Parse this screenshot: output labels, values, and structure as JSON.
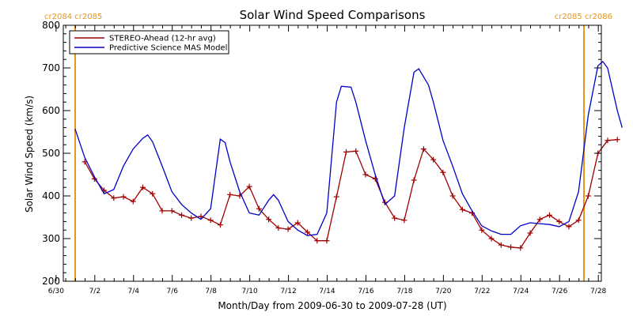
{
  "chart_data": {
    "type": "line",
    "title": "Solar Wind Speed Comparisons",
    "xlabel": "Month/Day from 2009-06-30 to 2009-07-28 (UT)",
    "ylabel": "Solar Wind Speed (km/s)",
    "ylim": [
      200,
      800
    ],
    "xlim": [
      "2009-06-30",
      "2009-07-28"
    ],
    "grid": false,
    "legend_position": "top-left",
    "x_ticks": [
      "6/30",
      "7/2",
      "7/4",
      "7/6",
      "7/8",
      "7/10",
      "7/12",
      "7/14",
      "7/16",
      "7/18",
      "7/20",
      "7/22",
      "7/24",
      "7/26",
      "7/28"
    ],
    "y_ticks": [
      "200",
      "300",
      "400",
      "500",
      "600",
      "700",
      "800"
    ],
    "carrington_markers": [
      {
        "date": "2009-06-30",
        "left_label": "cr2084",
        "right_label": "cr2085",
        "color": "#e8961e"
      },
      {
        "date": "2009-07-28",
        "left_label": "cr2085",
        "right_label": "cr2086",
        "color": "#e8961e"
      }
    ],
    "series": [
      {
        "name": "STEREO-Ahead (12-hr avg)",
        "color": "#a00000",
        "marker": "plus",
        "points": [
          [
            "2009-06-30T12:00",
            480
          ],
          [
            "2009-07-01T00:00",
            440
          ],
          [
            "2009-07-01T12:00",
            413
          ],
          [
            "2009-07-02T00:00",
            395
          ],
          [
            "2009-07-02T12:00",
            398
          ],
          [
            "2009-07-03T00:00",
            387
          ],
          [
            "2009-07-03T12:00",
            420
          ],
          [
            "2009-07-04T00:00",
            405
          ],
          [
            "2009-07-04T12:00",
            365
          ],
          [
            "2009-07-05T00:00",
            365
          ],
          [
            "2009-07-05T12:00",
            355
          ],
          [
            "2009-07-06T00:00",
            348
          ],
          [
            "2009-07-06T12:00",
            352
          ],
          [
            "2009-07-07T00:00",
            343
          ],
          [
            "2009-07-07T12:00",
            332
          ],
          [
            "2009-07-08T00:00",
            403
          ],
          [
            "2009-07-08T12:00",
            400
          ],
          [
            "2009-07-09T00:00",
            422
          ],
          [
            "2009-07-09T12:00",
            370
          ],
          [
            "2009-07-10T00:00",
            345
          ],
          [
            "2009-07-10T12:00",
            325
          ],
          [
            "2009-07-11T00:00",
            322
          ],
          [
            "2009-07-11T12:00",
            337
          ],
          [
            "2009-07-12T00:00",
            315
          ],
          [
            "2009-07-12T12:00",
            295
          ],
          [
            "2009-07-13T00:00",
            295
          ],
          [
            "2009-07-13T12:00",
            398
          ],
          [
            "2009-07-14T00:00",
            503
          ],
          [
            "2009-07-14T12:00",
            505
          ],
          [
            "2009-07-15T00:00",
            450
          ],
          [
            "2009-07-15T12:00",
            440
          ],
          [
            "2009-07-16T00:00",
            385
          ],
          [
            "2009-07-16T12:00",
            348
          ],
          [
            "2009-07-17T00:00",
            343
          ],
          [
            "2009-07-17T12:00",
            437
          ],
          [
            "2009-07-18T00:00",
            510
          ],
          [
            "2009-07-18T12:00",
            485
          ],
          [
            "2009-07-19T00:00",
            455
          ],
          [
            "2009-07-19T12:00",
            400
          ],
          [
            "2009-07-20T00:00",
            368
          ],
          [
            "2009-07-20T12:00",
            360
          ],
          [
            "2009-07-21T00:00",
            320
          ],
          [
            "2009-07-21T12:00",
            300
          ],
          [
            "2009-07-22T00:00",
            285
          ],
          [
            "2009-07-22T12:00",
            280
          ],
          [
            "2009-07-23T00:00",
            278
          ],
          [
            "2009-07-23T12:00",
            313
          ],
          [
            "2009-07-24T00:00",
            345
          ],
          [
            "2009-07-24T12:00",
            355
          ],
          [
            "2009-07-25T00:00",
            340
          ],
          [
            "2009-07-25T12:00",
            328
          ],
          [
            "2009-07-26T00:00",
            343
          ],
          [
            "2009-07-26T12:00",
            400
          ],
          [
            "2009-07-27T00:00",
            500
          ],
          [
            "2009-07-27T12:00",
            530
          ],
          [
            "2009-07-28T00:00",
            532
          ]
        ]
      },
      {
        "name": "Predictive Science MAS Model",
        "color": "#0000c8",
        "marker": "none",
        "points": [
          [
            "2009-06-30T00:00",
            557
          ],
          [
            "2009-06-30T12:00",
            490
          ],
          [
            "2009-07-01T00:00",
            445
          ],
          [
            "2009-07-01T12:00",
            405
          ],
          [
            "2009-07-02T00:00",
            415
          ],
          [
            "2009-07-02T12:00",
            470
          ],
          [
            "2009-07-03T00:00",
            510
          ],
          [
            "2009-07-03T12:00",
            535
          ],
          [
            "2009-07-03T18:00",
            543
          ],
          [
            "2009-07-04T00:00",
            527
          ],
          [
            "2009-07-04T12:00",
            470
          ],
          [
            "2009-07-05T00:00",
            410
          ],
          [
            "2009-07-05T12:00",
            380
          ],
          [
            "2009-07-06T00:00",
            360
          ],
          [
            "2009-07-06T12:00",
            345
          ],
          [
            "2009-07-07T00:00",
            370
          ],
          [
            "2009-07-07T12:00",
            533
          ],
          [
            "2009-07-07T18:00",
            525
          ],
          [
            "2009-07-08T00:00",
            480
          ],
          [
            "2009-07-08T12:00",
            410
          ],
          [
            "2009-07-09T00:00",
            360
          ],
          [
            "2009-07-09T12:00",
            355
          ],
          [
            "2009-07-10T00:00",
            390
          ],
          [
            "2009-07-10T06:00",
            403
          ],
          [
            "2009-07-10T12:00",
            390
          ],
          [
            "2009-07-11T00:00",
            340
          ],
          [
            "2009-07-11T12:00",
            320
          ],
          [
            "2009-07-12T00:00",
            307
          ],
          [
            "2009-07-12T12:00",
            310
          ],
          [
            "2009-07-13T00:00",
            360
          ],
          [
            "2009-07-13T12:00",
            620
          ],
          [
            "2009-07-13T18:00",
            657
          ],
          [
            "2009-07-14T06:00",
            655
          ],
          [
            "2009-07-14T12:00",
            620
          ],
          [
            "2009-07-15T00:00",
            530
          ],
          [
            "2009-07-15T12:00",
            450
          ],
          [
            "2009-07-16T00:00",
            380
          ],
          [
            "2009-07-16T12:00",
            400
          ],
          [
            "2009-07-17T00:00",
            560
          ],
          [
            "2009-07-17T12:00",
            690
          ],
          [
            "2009-07-17T18:00",
            698
          ],
          [
            "2009-07-18T06:00",
            660
          ],
          [
            "2009-07-18T12:00",
            620
          ],
          [
            "2009-07-19T00:00",
            530
          ],
          [
            "2009-07-19T12:00",
            470
          ],
          [
            "2009-07-20T00:00",
            405
          ],
          [
            "2009-07-20T12:00",
            365
          ],
          [
            "2009-07-21T00:00",
            330
          ],
          [
            "2009-07-21T12:00",
            318
          ],
          [
            "2009-07-22T00:00",
            310
          ],
          [
            "2009-07-22T12:00",
            310
          ],
          [
            "2009-07-23T00:00",
            330
          ],
          [
            "2009-07-23T12:00",
            337
          ],
          [
            "2009-07-24T00:00",
            335
          ],
          [
            "2009-07-24T12:00",
            333
          ],
          [
            "2009-07-25T00:00",
            328
          ],
          [
            "2009-07-25T12:00",
            340
          ],
          [
            "2009-07-26T00:00",
            410
          ],
          [
            "2009-07-26T12:00",
            590
          ],
          [
            "2009-07-27T00:00",
            705
          ],
          [
            "2009-07-27T06:00",
            715
          ],
          [
            "2009-07-27T12:00",
            700
          ],
          [
            "2009-07-28T00:00",
            600
          ],
          [
            "2009-07-28T06:00",
            560
          ]
        ]
      }
    ]
  }
}
